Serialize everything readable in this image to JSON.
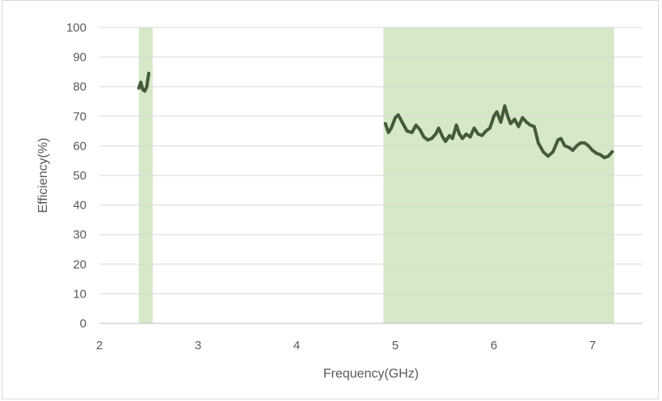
{
  "chart_data": {
    "type": "line",
    "title": "",
    "xlabel": "Frequency(GHz)",
    "ylabel": "Efficiency(%)",
    "xlim": [
      2,
      7.5
    ],
    "ylim": [
      0,
      100
    ],
    "x_ticks": [
      2,
      3,
      4,
      5,
      6,
      7
    ],
    "y_ticks": [
      0,
      10,
      20,
      30,
      40,
      50,
      60,
      70,
      80,
      90,
      100
    ],
    "grid": "horizontal",
    "legend": "none",
    "colors": {
      "line": "#435a3b",
      "band": "#d5e8c8",
      "grid": "#d9d9d9",
      "axis": "#bfbfbf"
    },
    "shaded_bands": [
      {
        "x0": 2.4,
        "x1": 2.54
      },
      {
        "x0": 4.88,
        "x1": 7.22
      }
    ],
    "series": [
      {
        "segments": [
          [
            [
              2.4,
              79.5
            ],
            [
              2.42,
              81.5
            ],
            [
              2.44,
              79
            ],
            [
              2.46,
              78.5
            ],
            [
              2.48,
              80
            ],
            [
              2.5,
              84.5
            ]
          ],
          [
            [
              4.9,
              67.5
            ],
            [
              4.93,
              64.5
            ],
            [
              4.96,
              66
            ],
            [
              5.0,
              69.5
            ],
            [
              5.03,
              70.5
            ],
            [
              5.07,
              68
            ],
            [
              5.12,
              65
            ],
            [
              5.17,
              64.5
            ],
            [
              5.21,
              67
            ],
            [
              5.25,
              65.5
            ],
            [
              5.29,
              63
            ],
            [
              5.33,
              62
            ],
            [
              5.37,
              62.5
            ],
            [
              5.41,
              64
            ],
            [
              5.44,
              66
            ],
            [
              5.48,
              63
            ],
            [
              5.51,
              61.5
            ],
            [
              5.55,
              63.5
            ],
            [
              5.58,
              62.5
            ],
            [
              5.62,
              67
            ],
            [
              5.65,
              64
            ],
            [
              5.68,
              62.5
            ],
            [
              5.72,
              64
            ],
            [
              5.76,
              63
            ],
            [
              5.8,
              66
            ],
            [
              5.84,
              64
            ],
            [
              5.88,
              63.5
            ],
            [
              5.92,
              65
            ],
            [
              5.96,
              66
            ],
            [
              6.0,
              70
            ],
            [
              6.03,
              71.5
            ],
            [
              6.07,
              68
            ],
            [
              6.11,
              73.5
            ],
            [
              6.14,
              70
            ],
            [
              6.17,
              67.5
            ],
            [
              6.21,
              69
            ],
            [
              6.25,
              66.5
            ],
            [
              6.29,
              69.5
            ],
            [
              6.33,
              68
            ],
            [
              6.37,
              67
            ],
            [
              6.41,
              66.5
            ],
            [
              6.45,
              61
            ],
            [
              6.5,
              58
            ],
            [
              6.55,
              56.5
            ],
            [
              6.6,
              58
            ],
            [
              6.65,
              62
            ],
            [
              6.68,
              62.5
            ],
            [
              6.72,
              60
            ],
            [
              6.76,
              59.5
            ],
            [
              6.8,
              58.5
            ],
            [
              6.84,
              60
            ],
            [
              6.88,
              61
            ],
            [
              6.92,
              61
            ],
            [
              6.96,
              60
            ],
            [
              7.0,
              58.5
            ],
            [
              7.04,
              57.5
            ],
            [
              7.08,
              57
            ],
            [
              7.12,
              56
            ],
            [
              7.16,
              56.5
            ],
            [
              7.2,
              58
            ]
          ]
        ]
      }
    ]
  }
}
